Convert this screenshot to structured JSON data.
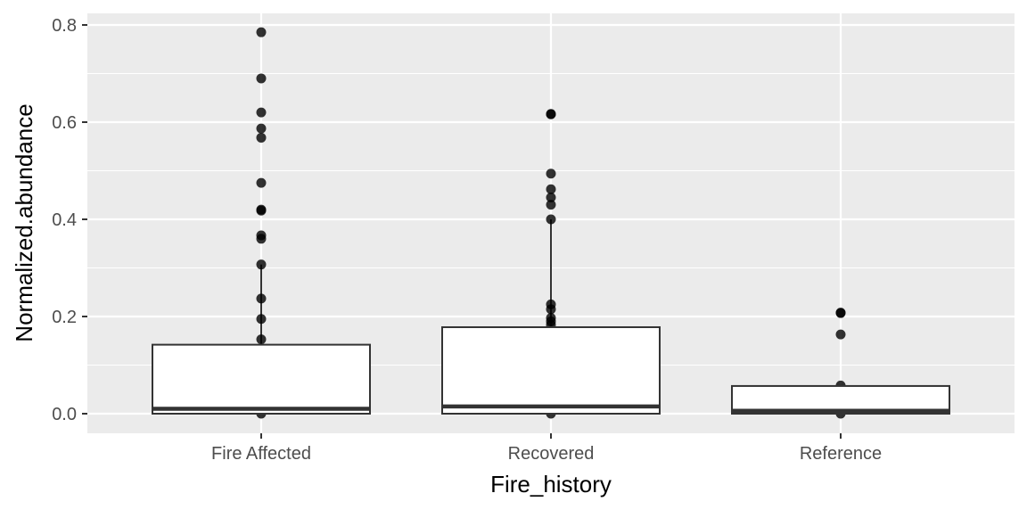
{
  "chart_data": {
    "type": "boxplot",
    "xlabel": "Fire_history",
    "ylabel": "Normalized.abundance",
    "ylim": [
      -0.04,
      0.81
    ],
    "yticks": [
      0.0,
      0.2,
      0.4,
      0.6,
      0.8
    ],
    "ytick_labels": [
      "0.0",
      "0.2",
      "0.4",
      "0.6",
      "0.8"
    ],
    "categories": [
      "Fire Affected",
      "Recovered",
      "Reference"
    ],
    "grid": true,
    "colors": {
      "panel": "#ebebeb",
      "grid": "#ffffff",
      "box_fill": "#ffffff",
      "box_line": "#333333",
      "points": "#000000",
      "axis_text": "#4d4d4d",
      "title_text": "#000000"
    },
    "boxes": [
      {
        "category": "Fire Affected",
        "min": 0.0,
        "q1": 0.0,
        "median": 0.01,
        "q3": 0.142,
        "whisker_high": 0.307,
        "outliers": [
          0.785,
          0.69,
          0.62,
          0.587,
          0.568,
          0.475,
          0.42,
          0.418,
          0.367,
          0.36,
          0.307,
          0.237,
          0.195,
          0.153,
          0.0
        ]
      },
      {
        "category": "Recovered",
        "min": 0.0,
        "q1": 0.0,
        "median": 0.015,
        "q3": 0.178,
        "whisker_high": 0.4,
        "outliers": [
          0.617,
          0.616,
          0.494,
          0.462,
          0.445,
          0.43,
          0.4,
          0.225,
          0.215,
          0.197,
          0.19,
          0.183,
          0.0
        ]
      },
      {
        "category": "Reference",
        "min": 0.0,
        "q1": 0.0,
        "median": 0.006,
        "q3": 0.057,
        "whisker_high": 0.057,
        "outliers": [
          0.208,
          0.207,
          0.163,
          0.058,
          0.0
        ]
      }
    ]
  }
}
